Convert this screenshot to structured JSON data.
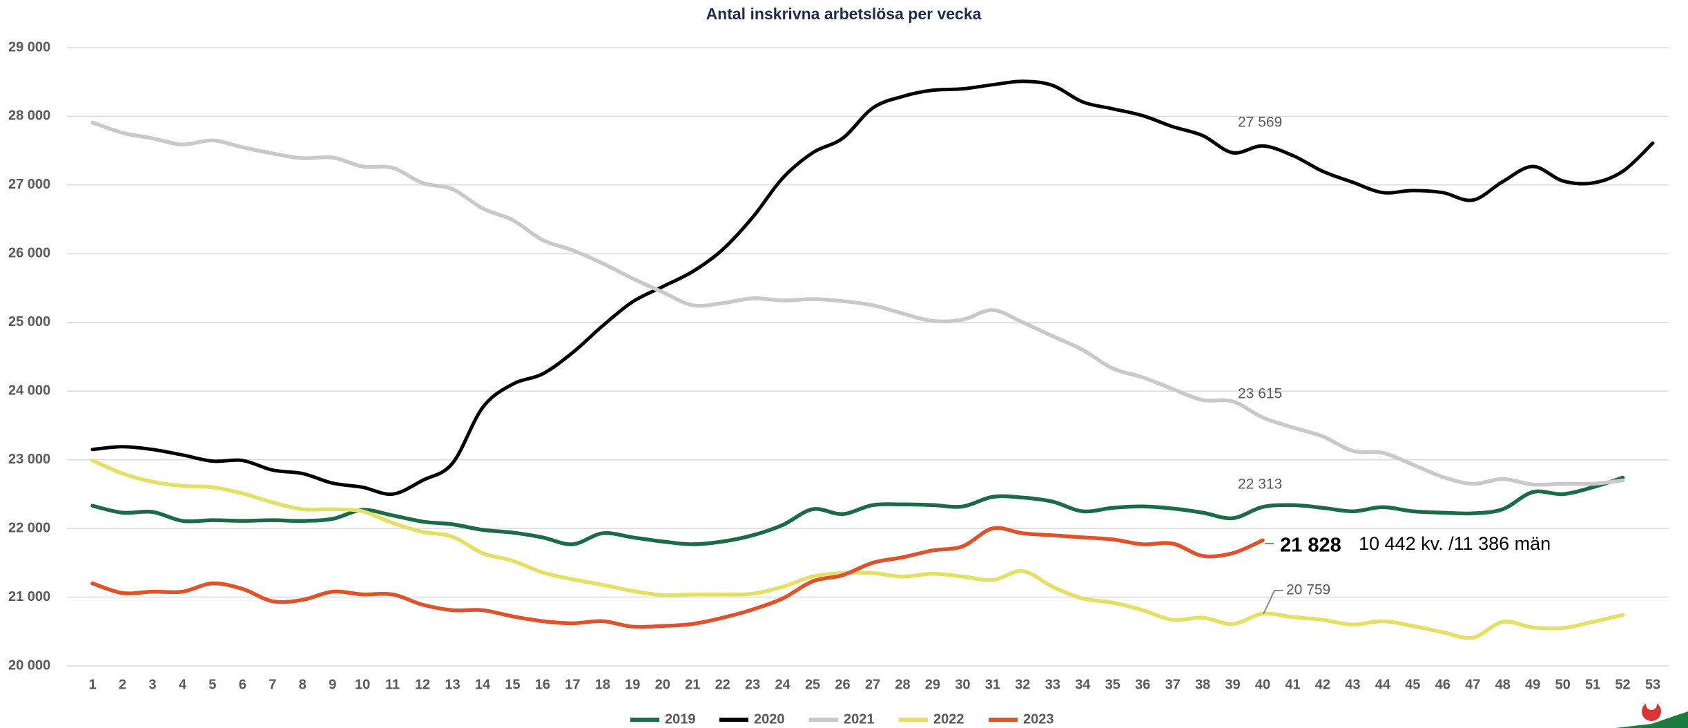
{
  "chart_data": {
    "type": "line",
    "title": "Antal inskrivna arbetslösa per vecka",
    "categories": [
      "1",
      "2",
      "3",
      "4",
      "5",
      "6",
      "7",
      "8",
      "9",
      "10",
      "11",
      "12",
      "13",
      "14",
      "15",
      "16",
      "17",
      "18",
      "19",
      "20",
      "21",
      "22",
      "23",
      "24",
      "25",
      "26",
      "27",
      "28",
      "29",
      "30",
      "31",
      "32",
      "33",
      "34",
      "35",
      "36",
      "37",
      "38",
      "39",
      "40",
      "41",
      "42",
      "43",
      "44",
      "45",
      "46",
      "47",
      "48",
      "49",
      "50",
      "51",
      "52",
      "53"
    ],
    "ylim": [
      20000,
      29000
    ],
    "yticks": [
      {
        "value": 20000,
        "label": "20 000"
      },
      {
        "value": 21000,
        "label": "21 000"
      },
      {
        "value": 22000,
        "label": "22 000"
      },
      {
        "value": 23000,
        "label": "23 000"
      },
      {
        "value": 24000,
        "label": "24 000"
      },
      {
        "value": 25000,
        "label": "25 000"
      },
      {
        "value": 26000,
        "label": "26 000"
      },
      {
        "value": 27000,
        "label": "27 000"
      },
      {
        "value": 28000,
        "label": "28 000"
      },
      {
        "value": 29000,
        "label": "29 000"
      }
    ],
    "grid": true,
    "legend": "bottom",
    "series": [
      {
        "name": "2019",
        "color": "#1b6b47",
        "values": [
          22330,
          22230,
          22240,
          22110,
          22120,
          22110,
          22120,
          22110,
          22140,
          22270,
          22190,
          22100,
          22060,
          21980,
          21940,
          21870,
          21770,
          21930,
          21870,
          21810,
          21770,
          21810,
          21900,
          22050,
          22280,
          22210,
          22340,
          22350,
          22340,
          22320,
          22460,
          22450,
          22390,
          22250,
          22300,
          22320,
          22290,
          22230,
          22150,
          22313,
          22340,
          22300,
          22250,
          22310,
          22250,
          22230,
          22220,
          22280,
          22530,
          22500,
          22600,
          22740,
          null
        ]
      },
      {
        "name": "2020",
        "color": "#000000",
        "values": [
          23150,
          23190,
          23150,
          23070,
          22980,
          22990,
          22850,
          22800,
          22660,
          22600,
          22500,
          22700,
          22950,
          23760,
          24100,
          24250,
          24560,
          24950,
          25300,
          25520,
          25740,
          26060,
          26530,
          27100,
          27470,
          27680,
          28120,
          28290,
          28380,
          28400,
          28460,
          28510,
          28450,
          28210,
          28110,
          28010,
          27850,
          27720,
          27470,
          27569,
          27430,
          27200,
          27040,
          26890,
          26920,
          26890,
          26780,
          27050,
          27270,
          27060,
          27030,
          27200,
          27610
        ]
      },
      {
        "name": "2021",
        "color": "#c9c9c9",
        "values": [
          27910,
          27760,
          27680,
          27590,
          27650,
          27550,
          27460,
          27390,
          27400,
          27270,
          27250,
          27030,
          26940,
          26660,
          26490,
          26200,
          26050,
          25860,
          25640,
          25440,
          25250,
          25280,
          25350,
          25320,
          25340,
          25310,
          25250,
          25130,
          25020,
          25040,
          25180,
          25000,
          24800,
          24600,
          24330,
          24200,
          24030,
          23870,
          23850,
          23615,
          23470,
          23340,
          23130,
          23100,
          22930,
          22750,
          22650,
          22720,
          22640,
          22650,
          22650,
          22700,
          null
        ]
      },
      {
        "name": "2022",
        "color": "#e3e063",
        "values": [
          22990,
          22800,
          22680,
          22620,
          22600,
          22510,
          22380,
          22280,
          22280,
          22250,
          22080,
          21950,
          21880,
          21640,
          21530,
          21360,
          21260,
          21180,
          21090,
          21030,
          21040,
          21040,
          21050,
          21150,
          21300,
          21350,
          21350,
          21300,
          21340,
          21300,
          21250,
          21380,
          21150,
          20980,
          20920,
          20810,
          20670,
          20700,
          20610,
          20759,
          20710,
          20670,
          20600,
          20650,
          20580,
          20490,
          20410,
          20640,
          20560,
          20550,
          20640,
          20740,
          null
        ]
      },
      {
        "name": "2023",
        "color": "#e0522a",
        "values": [
          21200,
          21060,
          21080,
          21080,
          21200,
          21120,
          20940,
          20960,
          21080,
          21040,
          21040,
          20890,
          20810,
          20810,
          20720,
          20650,
          20620,
          20650,
          20570,
          20580,
          20610,
          20700,
          20820,
          20980,
          21230,
          21320,
          21500,
          21580,
          21680,
          21740,
          22000,
          21930,
          21900,
          21870,
          21840,
          21770,
          21780,
          21600,
          21640,
          21828,
          null,
          null,
          null,
          null,
          null,
          null,
          null,
          null,
          null,
          null,
          null,
          null,
          null
        ]
      }
    ],
    "annotations": [
      "27 569",
      "23 615",
      "22 313",
      "21 828",
      "10 442 kv. /11 386 män",
      "20 759"
    ]
  }
}
